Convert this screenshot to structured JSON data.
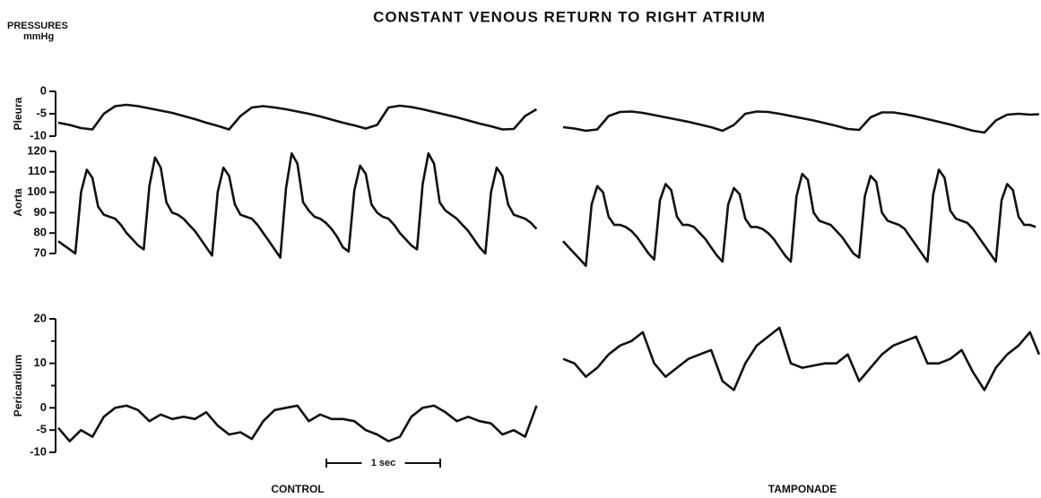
{
  "title": "CONSTANT VENOUS RETURN TO RIGHT ATRIUM",
  "axis_caption": [
    "PRESSURES",
    "mmHg"
  ],
  "conditions": [
    "CONTROL",
    "TAMPONADE"
  ],
  "scale_bar": {
    "value": 1,
    "label": "1 sec"
  },
  "chart_data": [
    {
      "type": "line",
      "ylabel": "Pleura",
      "ylim": [
        -10,
        0
      ],
      "yticks": [
        0,
        -5,
        -10
      ],
      "xlim": [
        0,
        4.23
      ],
      "series": [
        {
          "color": "#111111",
          "x": [
            0,
            0.1,
            0.2,
            0.3,
            0.4,
            0.5,
            0.6,
            0.7,
            0.8,
            0.9,
            1,
            1.1,
            1.2,
            1.3,
            1.4,
            1.5,
            1.6,
            1.7,
            1.8,
            1.9,
            2,
            2.1,
            2.2,
            2.3,
            2.4,
            2.5,
            2.6,
            2.7,
            2.8,
            2.9,
            3,
            3.1,
            3.2,
            3.3,
            3.4,
            3.5,
            3.6,
            3.7,
            3.8,
            3.9,
            4,
            4.1,
            4.2
          ],
          "values": [
            -7,
            -7.5,
            -8.2,
            -8.5,
            -5,
            -3.3,
            -3,
            -3.3,
            -3.8,
            -4.3,
            -4.8,
            -5.5,
            -6.2,
            -7,
            -7.7,
            -8.5,
            -5.5,
            -3.6,
            -3.3,
            -3.6,
            -4,
            -4.5,
            -5,
            -5.6,
            -6.3,
            -7,
            -7.6,
            -8.3,
            -7.5,
            -3.6,
            -3.2,
            -3.5,
            -4,
            -4.6,
            -5.2,
            -5.8,
            -6.5,
            -7.2,
            -7.8,
            -8.5,
            -8.4,
            -5.5,
            -4
          ]
        },
        {
          "color": "#111111",
          "x": [
            0,
            0.1,
            0.2,
            0.3,
            0.4,
            0.5,
            0.6,
            0.7,
            0.8,
            0.9,
            1,
            1.1,
            1.2,
            1.3,
            1.4,
            1.5,
            1.6,
            1.7,
            1.8,
            1.9,
            2,
            2.1,
            2.2,
            2.3,
            2.4,
            2.5,
            2.6,
            2.7,
            2.8,
            2.9,
            3,
            3.1,
            3.2,
            3.3,
            3.4,
            3.5,
            3.6,
            3.7,
            3.8,
            3.9,
            4,
            4.1,
            4.18
          ],
          "values": [
            -8,
            -8.3,
            -8.8,
            -8.5,
            -5.5,
            -4.6,
            -4.5,
            -4.8,
            -5.3,
            -5.8,
            -6.3,
            -6.8,
            -7.4,
            -8,
            -8.8,
            -7.5,
            -5,
            -4.5,
            -4.6,
            -5,
            -5.5,
            -6,
            -6.5,
            -7.1,
            -7.7,
            -8.4,
            -8.6,
            -5.8,
            -4.7,
            -4.7,
            -5.1,
            -5.6,
            -6.2,
            -6.8,
            -7.4,
            -8.1,
            -8.8,
            -9.2,
            -6.5,
            -5.2,
            -5,
            -5.2,
            -5.1
          ]
        }
      ]
    },
    {
      "type": "line",
      "ylabel": "Aorta",
      "ylim": [
        70,
        120
      ],
      "yticks": [
        120,
        110,
        100,
        90,
        80,
        70
      ],
      "xlim": [
        0,
        4.23
      ],
      "series": [
        {
          "color": "#111111",
          "x": [
            0,
            0.05,
            0.1,
            0.15,
            0.2,
            0.25,
            0.3,
            0.35,
            0.4,
            0.45,
            0.5,
            0.55,
            0.6,
            0.65,
            0.7,
            0.75,
            0.8,
            0.85,
            0.9,
            0.95,
            1,
            1.05,
            1.1,
            1.15,
            1.2,
            1.25,
            1.3,
            1.35,
            1.4,
            1.45,
            1.5,
            1.55,
            1.6,
            1.65,
            1.7,
            1.75,
            1.8,
            1.85,
            1.9,
            1.95,
            2,
            2.05,
            2.1,
            2.15,
            2.2,
            2.25,
            2.3,
            2.35,
            2.4,
            2.45,
            2.5,
            2.55,
            2.6,
            2.65,
            2.7,
            2.75,
            2.8,
            2.85,
            2.9,
            2.95,
            3,
            3.05,
            3.1,
            3.15,
            3.2,
            3.25,
            3.3,
            3.35,
            3.4,
            3.45,
            3.5,
            3.55,
            3.6,
            3.65,
            3.7,
            3.75,
            3.8,
            3.85,
            3.9,
            3.95,
            4,
            4.05,
            4.1,
            4.15,
            4.2
          ],
          "values": [
            76,
            74,
            72,
            70,
            100,
            111,
            107,
            93,
            89,
            88,
            87,
            84,
            80,
            77,
            74,
            72,
            103,
            117,
            112,
            95,
            90,
            89,
            87,
            84,
            81,
            77,
            73,
            69,
            100,
            112,
            108,
            94,
            89,
            88,
            87,
            84,
            80,
            76,
            72,
            68,
            102,
            119,
            114,
            95,
            91,
            88,
            87,
            85,
            82,
            78,
            73,
            71,
            101,
            113,
            109,
            94,
            90,
            88,
            87,
            84,
            80,
            77,
            74,
            72,
            104,
            119,
            114,
            95,
            91,
            89,
            87,
            84,
            81,
            77,
            73,
            70,
            100,
            112,
            108,
            94,
            89,
            88,
            87,
            85,
            82
          ]
        },
        {
          "color": "#111111",
          "x": [
            0,
            0.05,
            0.1,
            0.15,
            0.2,
            0.25,
            0.3,
            0.35,
            0.4,
            0.45,
            0.5,
            0.55,
            0.6,
            0.65,
            0.7,
            0.75,
            0.8,
            0.85,
            0.9,
            0.95,
            1,
            1.05,
            1.1,
            1.15,
            1.2,
            1.25,
            1.3,
            1.35,
            1.4,
            1.45,
            1.5,
            1.55,
            1.6,
            1.65,
            1.7,
            1.75,
            1.8,
            1.85,
            1.9,
            1.95,
            2,
            2.05,
            2.1,
            2.15,
            2.2,
            2.25,
            2.3,
            2.35,
            2.4,
            2.45,
            2.5,
            2.55,
            2.6,
            2.65,
            2.7,
            2.75,
            2.8,
            2.85,
            2.9,
            2.95,
            3,
            3.05,
            3.1,
            3.15,
            3.2,
            3.25,
            3.3,
            3.35,
            3.4,
            3.45,
            3.5,
            3.55,
            3.6,
            3.65,
            3.7,
            3.75,
            3.8,
            3.85,
            3.9,
            3.95,
            4,
            4.05,
            4.1,
            4.15
          ],
          "values": [
            76,
            73,
            70,
            67,
            64,
            94,
            103,
            100,
            88,
            84,
            84,
            83,
            81,
            78,
            74,
            70,
            67,
            96,
            104,
            101,
            88,
            84,
            84,
            83,
            80,
            77,
            73,
            69,
            66,
            94,
            102,
            99,
            87,
            83,
            83,
            82,
            80,
            77,
            73,
            69,
            66,
            98,
            109,
            106,
            90,
            86,
            85,
            84,
            81,
            78,
            74,
            70,
            68,
            98,
            108,
            105,
            90,
            86,
            85,
            84,
            82,
            78,
            74,
            70,
            66,
            99,
            111,
            107,
            91,
            87,
            86,
            85,
            82,
            78,
            74,
            70,
            66,
            96,
            104,
            101,
            88,
            84,
            84,
            83
          ]
        }
      ]
    },
    {
      "type": "line",
      "ylabel": "Pericardium",
      "ylim": [
        -10,
        20
      ],
      "yticks": [
        20,
        10,
        0,
        -5,
        -10
      ],
      "minor_yticks": [
        15,
        5
      ],
      "xlim": [
        0,
        4.23
      ],
      "series": [
        {
          "color": "#111111",
          "x": [
            0,
            0.1,
            0.2,
            0.3,
            0.4,
            0.5,
            0.6,
            0.7,
            0.8,
            0.9,
            1,
            1.1,
            1.2,
            1.3,
            1.4,
            1.5,
            1.6,
            1.7,
            1.8,
            1.9,
            2,
            2.1,
            2.2,
            2.3,
            2.4,
            2.5,
            2.6,
            2.7,
            2.8,
            2.9,
            3,
            3.1,
            3.2,
            3.3,
            3.4,
            3.5,
            3.6,
            3.7,
            3.8,
            3.9,
            4,
            4.1,
            4.2
          ],
          "values": [
            -4.5,
            -7.5,
            -5,
            -6.5,
            -2,
            0,
            0.5,
            -0.5,
            -3,
            -1.5,
            -2.5,
            -2,
            -2.5,
            -1,
            -4,
            -6,
            -5.5,
            -7,
            -3,
            -0.5,
            0,
            0.5,
            -3,
            -1.5,
            -2.5,
            -2.5,
            -3,
            -5,
            -6,
            -7.5,
            -6.5,
            -2,
            0,
            0.5,
            -1,
            -3,
            -2,
            -3,
            -3.5,
            -6,
            -5,
            -6.5,
            0.5
          ]
        },
        {
          "color": "#111111",
          "x": [
            0,
            0.1,
            0.2,
            0.3,
            0.4,
            0.5,
            0.6,
            0.7,
            0.8,
            0.9,
            1,
            1.1,
            1.2,
            1.3,
            1.4,
            1.5,
            1.6,
            1.7,
            1.8,
            1.9,
            2,
            2.1,
            2.2,
            2.3,
            2.4,
            2.5,
            2.6,
            2.7,
            2.8,
            2.9,
            3,
            3.1,
            3.2,
            3.3,
            3.4,
            3.5,
            3.6,
            3.7,
            3.8,
            3.9,
            4,
            4.1,
            4.18
          ],
          "values": [
            11,
            10,
            7,
            9,
            12,
            14,
            15,
            17,
            10,
            7,
            9,
            11,
            12,
            13,
            6,
            4,
            10,
            14,
            16,
            18,
            10,
            9,
            9.5,
            10,
            10,
            12,
            6,
            9,
            12,
            14,
            15,
            16,
            10,
            10,
            11,
            13,
            8,
            4,
            9,
            12,
            14,
            17,
            12
          ]
        }
      ]
    }
  ]
}
